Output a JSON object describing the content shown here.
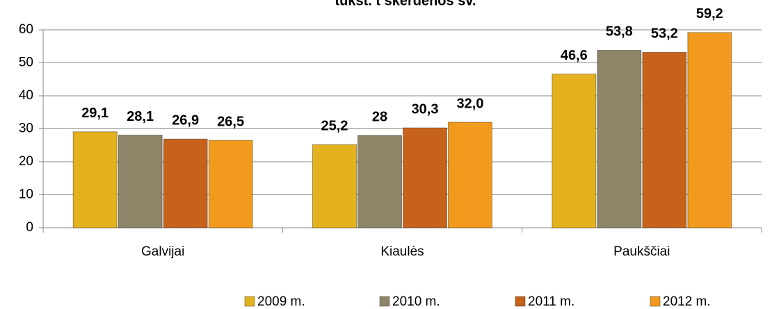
{
  "chart_data": {
    "type": "bar",
    "title": "tūkst. t skerdenos sv.",
    "categories": [
      "Galvijai",
      "Kiaulės",
      "Paukščiai"
    ],
    "series": [
      {
        "name": "2009 m.",
        "color": "#e3b21e",
        "values": [
          29.1,
          25.2,
          46.6
        ],
        "value_labels": [
          "29,1",
          "25,2",
          "46,6"
        ]
      },
      {
        "name": "2010 m.",
        "color": "#8e8569",
        "values": [
          28.1,
          28,
          53.8
        ],
        "value_labels": [
          "28,1",
          "28",
          "53,8"
        ]
      },
      {
        "name": "2011 m.",
        "color": "#c7621b",
        "values": [
          26.9,
          30.3,
          53.2
        ],
        "value_labels": [
          "26,9",
          "30,3",
          "53,2"
        ]
      },
      {
        "name": "2012 m.",
        "color": "#f29a1d",
        "values": [
          26.5,
          32.0,
          59.2
        ],
        "value_labels": [
          "26,5",
          "32,0",
          "59,2"
        ]
      }
    ],
    "ylim": [
      0,
      60
    ],
    "yticks": [
      0,
      10,
      20,
      30,
      40,
      50,
      60
    ],
    "grid": true,
    "legend": "bottom"
  }
}
